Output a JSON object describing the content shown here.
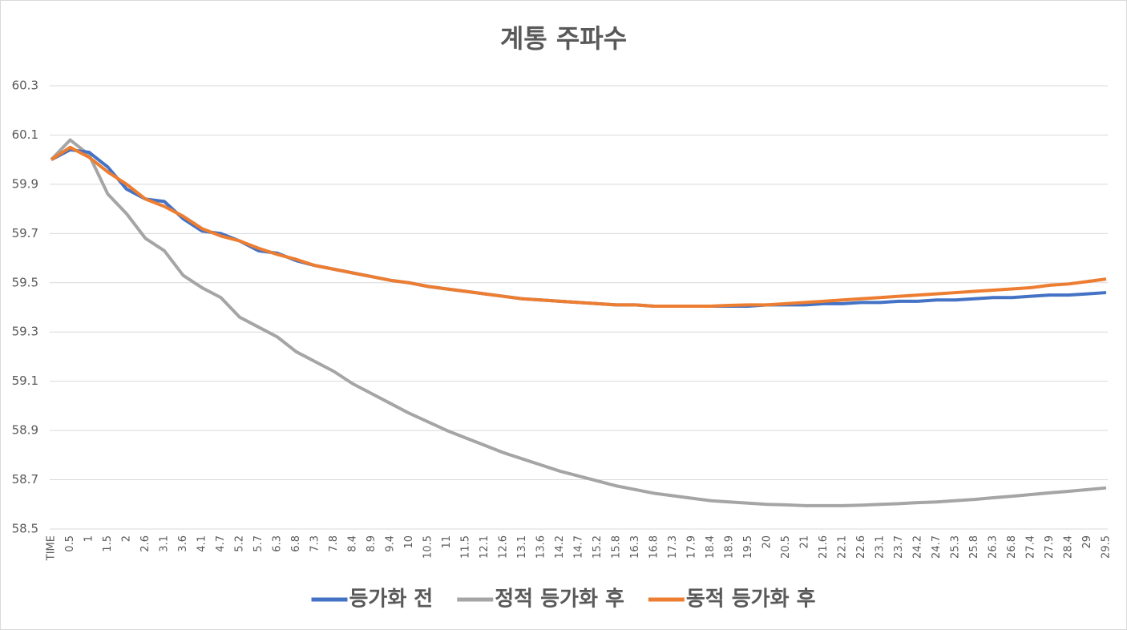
{
  "chart_data": {
    "type": "line",
    "title": "계통 주파수",
    "categories": [
      "TIME",
      "0.5",
      "1",
      "1.5",
      "2",
      "2.6",
      "3.1",
      "3.6",
      "4.1",
      "4.7",
      "5.2",
      "5.7",
      "6.3",
      "6.8",
      "7.3",
      "7.8",
      "8.4",
      "8.9",
      "9.4",
      "10",
      "10.5",
      "11",
      "11.5",
      "12.1",
      "12.6",
      "13.1",
      "13.6",
      "14.2",
      "14.7",
      "15.2",
      "15.8",
      "16.3",
      "16.8",
      "17.3",
      "17.9",
      "18.4",
      "18.9",
      "19.5",
      "20",
      "20.5",
      "21",
      "21.6",
      "22.1",
      "22.6",
      "23.1",
      "23.7",
      "24.2",
      "24.7",
      "25.3",
      "25.8",
      "26.3",
      "26.8",
      "27.4",
      "27.9",
      "28.4",
      "29",
      "29.5"
    ],
    "series": [
      {
        "name": "등가화 전",
        "color": "#4472c4",
        "values": [
          60,
          60.04,
          60.03,
          59.97,
          59.88,
          59.84,
          59.83,
          59.76,
          59.71,
          59.7,
          59.67,
          59.63,
          59.62,
          59.59,
          59.57,
          59.555,
          59.54,
          59.525,
          59.51,
          59.5,
          59.485,
          59.475,
          59.465,
          59.455,
          59.445,
          59.435,
          59.43,
          59.425,
          59.42,
          59.415,
          59.41,
          59.41,
          59.405,
          59.405,
          59.405,
          59.405,
          59.405,
          59.405,
          59.41,
          59.41,
          59.41,
          59.415,
          59.415,
          59.42,
          59.42,
          59.425,
          59.425,
          59.43,
          59.43,
          59.435,
          59.44,
          59.44,
          59.445,
          59.45,
          59.45,
          59.455,
          59.46
        ]
      },
      {
        "name": "정적 등가화 후",
        "color": "#a5a5a5",
        "values": [
          60,
          60.08,
          60.02,
          59.86,
          59.78,
          59.68,
          59.63,
          59.53,
          59.48,
          59.44,
          59.36,
          59.32,
          59.28,
          59.22,
          59.18,
          59.14,
          59.09,
          59.05,
          59.01,
          58.97,
          58.935,
          58.9,
          58.87,
          58.84,
          58.81,
          58.785,
          58.76,
          58.735,
          58.715,
          58.695,
          58.675,
          58.66,
          58.645,
          58.635,
          58.625,
          58.615,
          58.61,
          58.605,
          58.6,
          58.598,
          58.595,
          58.595,
          58.595,
          58.597,
          58.6,
          58.603,
          58.607,
          58.61,
          58.615,
          58.62,
          58.627,
          58.633,
          58.64,
          58.647,
          58.653,
          58.66,
          58.667
        ]
      },
      {
        "name": "동적 등가화 후",
        "color": "#ed7d31",
        "values": [
          60,
          60.05,
          60.01,
          59.95,
          59.9,
          59.84,
          59.81,
          59.77,
          59.72,
          59.69,
          59.67,
          59.64,
          59.615,
          59.595,
          59.57,
          59.555,
          59.54,
          59.525,
          59.51,
          59.5,
          59.485,
          59.475,
          59.465,
          59.455,
          59.445,
          59.435,
          59.43,
          59.425,
          59.42,
          59.415,
          59.41,
          59.41,
          59.405,
          59.405,
          59.405,
          59.405,
          59.408,
          59.41,
          59.41,
          59.415,
          59.42,
          59.425,
          59.43,
          59.435,
          59.44,
          59.445,
          59.45,
          59.455,
          59.46,
          59.465,
          59.47,
          59.475,
          59.48,
          59.49,
          59.495,
          59.505,
          59.515
        ]
      }
    ],
    "ylim": [
      58.5,
      60.3
    ],
    "yticks": [
      58.5,
      58.7,
      58.9,
      59.1,
      59.3,
      59.5,
      59.7,
      59.9,
      60.1,
      60.3
    ],
    "grid": true,
    "legend": "bottom"
  }
}
